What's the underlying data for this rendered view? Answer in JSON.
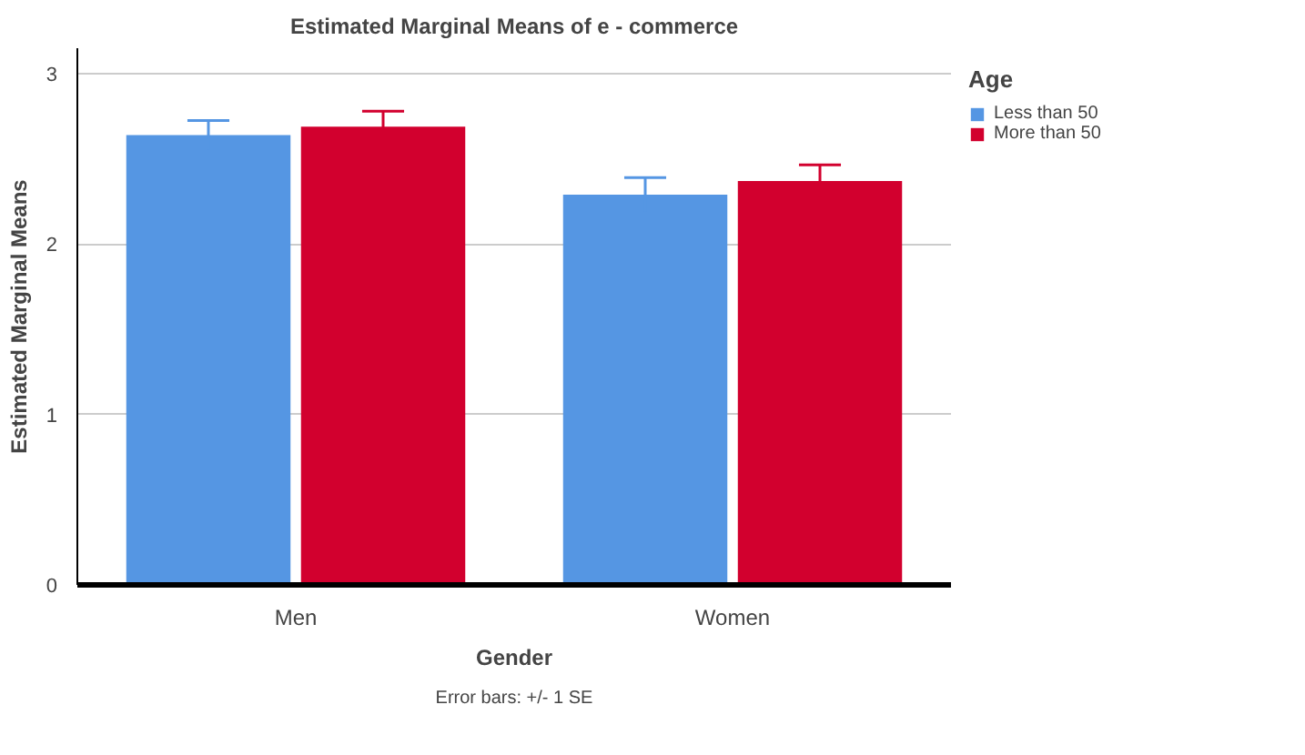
{
  "chart_data": {
    "type": "bar",
    "title": "Estimated Marginal Means of e - commerce",
    "xlabel": "Gender",
    "ylabel": "Estimated Marginal Means",
    "legend_title": "Age",
    "categories": [
      "Men",
      "Women"
    ],
    "series": [
      {
        "name": "Less than 50",
        "color": "#5596e3",
        "values": [
          2.64,
          2.29
        ],
        "errors": [
          0.085,
          0.1
        ]
      },
      {
        "name": "More than 50",
        "color": "#d2002e",
        "values": [
          2.69,
          2.37
        ],
        "errors": [
          0.09,
          0.095
        ]
      }
    ],
    "ylim": [
      0,
      3.15
    ],
    "yticks": [
      0,
      1,
      2,
      3
    ],
    "grid": "y",
    "legend": "top right",
    "annotations": [
      "Error bars: +/- 1 SE"
    ]
  }
}
